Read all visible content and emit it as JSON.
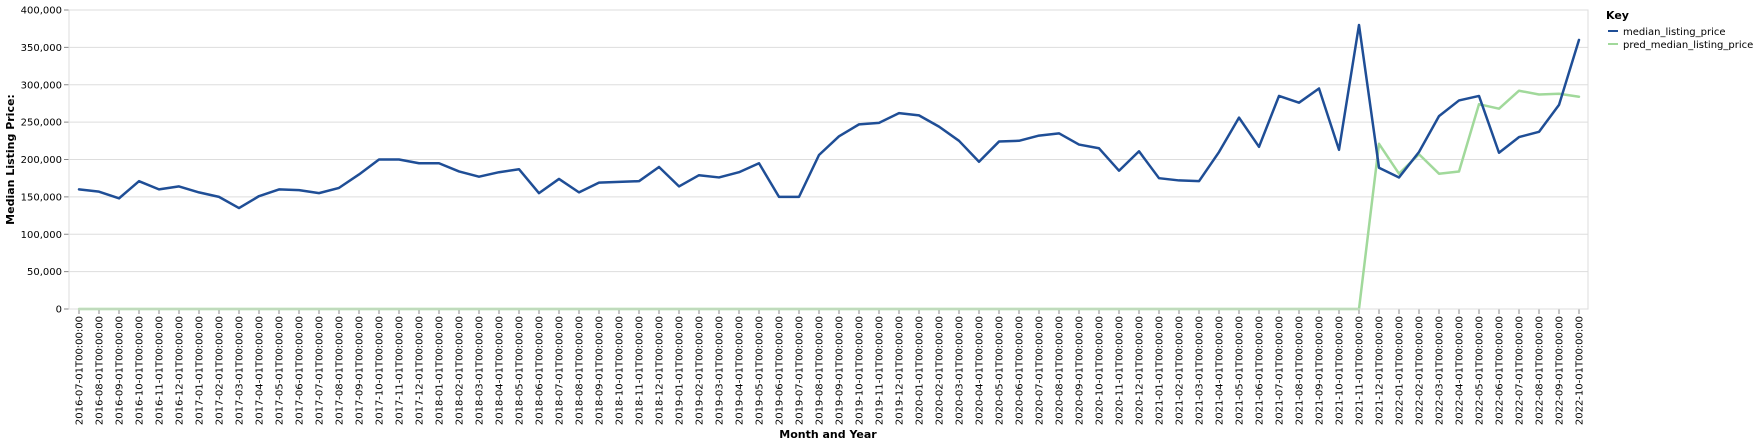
{
  "chart_data": {
    "type": "line",
    "xlabel": "Month and Year",
    "ylabel": "Median Listing Price:",
    "ylim": [
      0,
      400000
    ],
    "y_ticks": [
      "0",
      "50,000",
      "100,000",
      "150,000",
      "200,000",
      "250,000",
      "300,000",
      "350,000",
      "400,000"
    ],
    "grid": true,
    "legend": {
      "title": "Key",
      "position": "top-right"
    },
    "x": [
      "2016-07-01T00:00:00",
      "2016-08-01T00:00:00",
      "2016-09-01T00:00:00",
      "2016-10-01T00:00:00",
      "2016-11-01T00:00:00",
      "2016-12-01T00:00:00",
      "2017-01-01T00:00:00",
      "2017-02-01T00:00:00",
      "2017-03-01T00:00:00",
      "2017-04-01T00:00:00",
      "2017-05-01T00:00:00",
      "2017-06-01T00:00:00",
      "2017-07-01T00:00:00",
      "2017-08-01T00:00:00",
      "2017-09-01T00:00:00",
      "2017-10-01T00:00:00",
      "2017-11-01T00:00:00",
      "2017-12-01T00:00:00",
      "2018-01-01T00:00:00",
      "2018-02-01T00:00:00",
      "2018-03-01T00:00:00",
      "2018-04-01T00:00:00",
      "2018-05-01T00:00:00",
      "2018-06-01T00:00:00",
      "2018-07-01T00:00:00",
      "2018-08-01T00:00:00",
      "2018-09-01T00:00:00",
      "2018-10-01T00:00:00",
      "2018-11-01T00:00:00",
      "2018-12-01T00:00:00",
      "2019-01-01T00:00:00",
      "2019-02-01T00:00:00",
      "2019-03-01T00:00:00",
      "2019-04-01T00:00:00",
      "2019-05-01T00:00:00",
      "2019-06-01T00:00:00",
      "2019-07-01T00:00:00",
      "2019-08-01T00:00:00",
      "2019-09-01T00:00:00",
      "2019-10-01T00:00:00",
      "2019-11-01T00:00:00",
      "2019-12-01T00:00:00",
      "2020-01-01T00:00:00",
      "2020-02-01T00:00:00",
      "2020-03-01T00:00:00",
      "2020-04-01T00:00:00",
      "2020-05-01T00:00:00",
      "2020-06-01T00:00:00",
      "2020-07-01T00:00:00",
      "2020-08-01T00:00:00",
      "2020-09-01T00:00:00",
      "2020-10-01T00:00:00",
      "2020-11-01T00:00:00",
      "2020-12-01T00:00:00",
      "2021-01-01T00:00:00",
      "2021-02-01T00:00:00",
      "2021-03-01T00:00:00",
      "2021-04-01T00:00:00",
      "2021-05-01T00:00:00",
      "2021-06-01T00:00:00",
      "2021-07-01T00:00:00",
      "2021-08-01T00:00:00",
      "2021-09-01T00:00:00",
      "2021-10-01T00:00:00",
      "2021-11-01T00:00:00",
      "2021-12-01T00:00:00",
      "2022-01-01T00:00:00",
      "2022-02-01T00:00:00",
      "2022-03-01T00:00:00",
      "2022-04-01T00:00:00",
      "2022-05-01T00:00:00",
      "2022-06-01T00:00:00",
      "2022-07-01T00:00:00",
      "2022-08-01T00:00:00",
      "2022-09-01T00:00:00",
      "2022-10-01T00:00:00"
    ],
    "series": [
      {
        "name": "median_listing_price",
        "color": "#1f4e96",
        "values": [
          160000,
          157000,
          148000,
          171000,
          160000,
          164000,
          156000,
          150000,
          135000,
          151000,
          160000,
          159000,
          155000,
          162000,
          180000,
          200000,
          200000,
          195000,
          195000,
          184000,
          177000,
          183000,
          187000,
          155000,
          174000,
          156000,
          169000,
          170000,
          171000,
          190000,
          164000,
          179000,
          176000,
          183000,
          195000,
          150000,
          150000,
          206000,
          231000,
          247000,
          249000,
          262000,
          259000,
          244000,
          225000,
          197000,
          224000,
          225000,
          232000,
          235000,
          220000,
          215000,
          185000,
          211000,
          175000,
          172000,
          171000,
          210000,
          256000,
          217000,
          285000,
          276000,
          295000,
          213000,
          380000,
          189000,
          176000,
          210000,
          258000,
          279000,
          285000,
          209000,
          230000,
          237000,
          273000,
          360000
        ]
      },
      {
        "name": "pred_median_listing_price",
        "color": "#a1d99b",
        "values": [
          0,
          0,
          0,
          0,
          0,
          0,
          0,
          0,
          0,
          0,
          0,
          0,
          0,
          0,
          0,
          0,
          0,
          0,
          0,
          0,
          0,
          0,
          0,
          0,
          0,
          0,
          0,
          0,
          0,
          0,
          0,
          0,
          0,
          0,
          0,
          0,
          0,
          0,
          0,
          0,
          0,
          0,
          0,
          0,
          0,
          0,
          0,
          0,
          0,
          0,
          0,
          0,
          0,
          0,
          0,
          0,
          0,
          0,
          0,
          0,
          0,
          0,
          0,
          0,
          0,
          221000,
          181000,
          207000,
          181000,
          184000,
          274000,
          268000,
          292000,
          287000,
          288000,
          284000
        ]
      }
    ]
  }
}
